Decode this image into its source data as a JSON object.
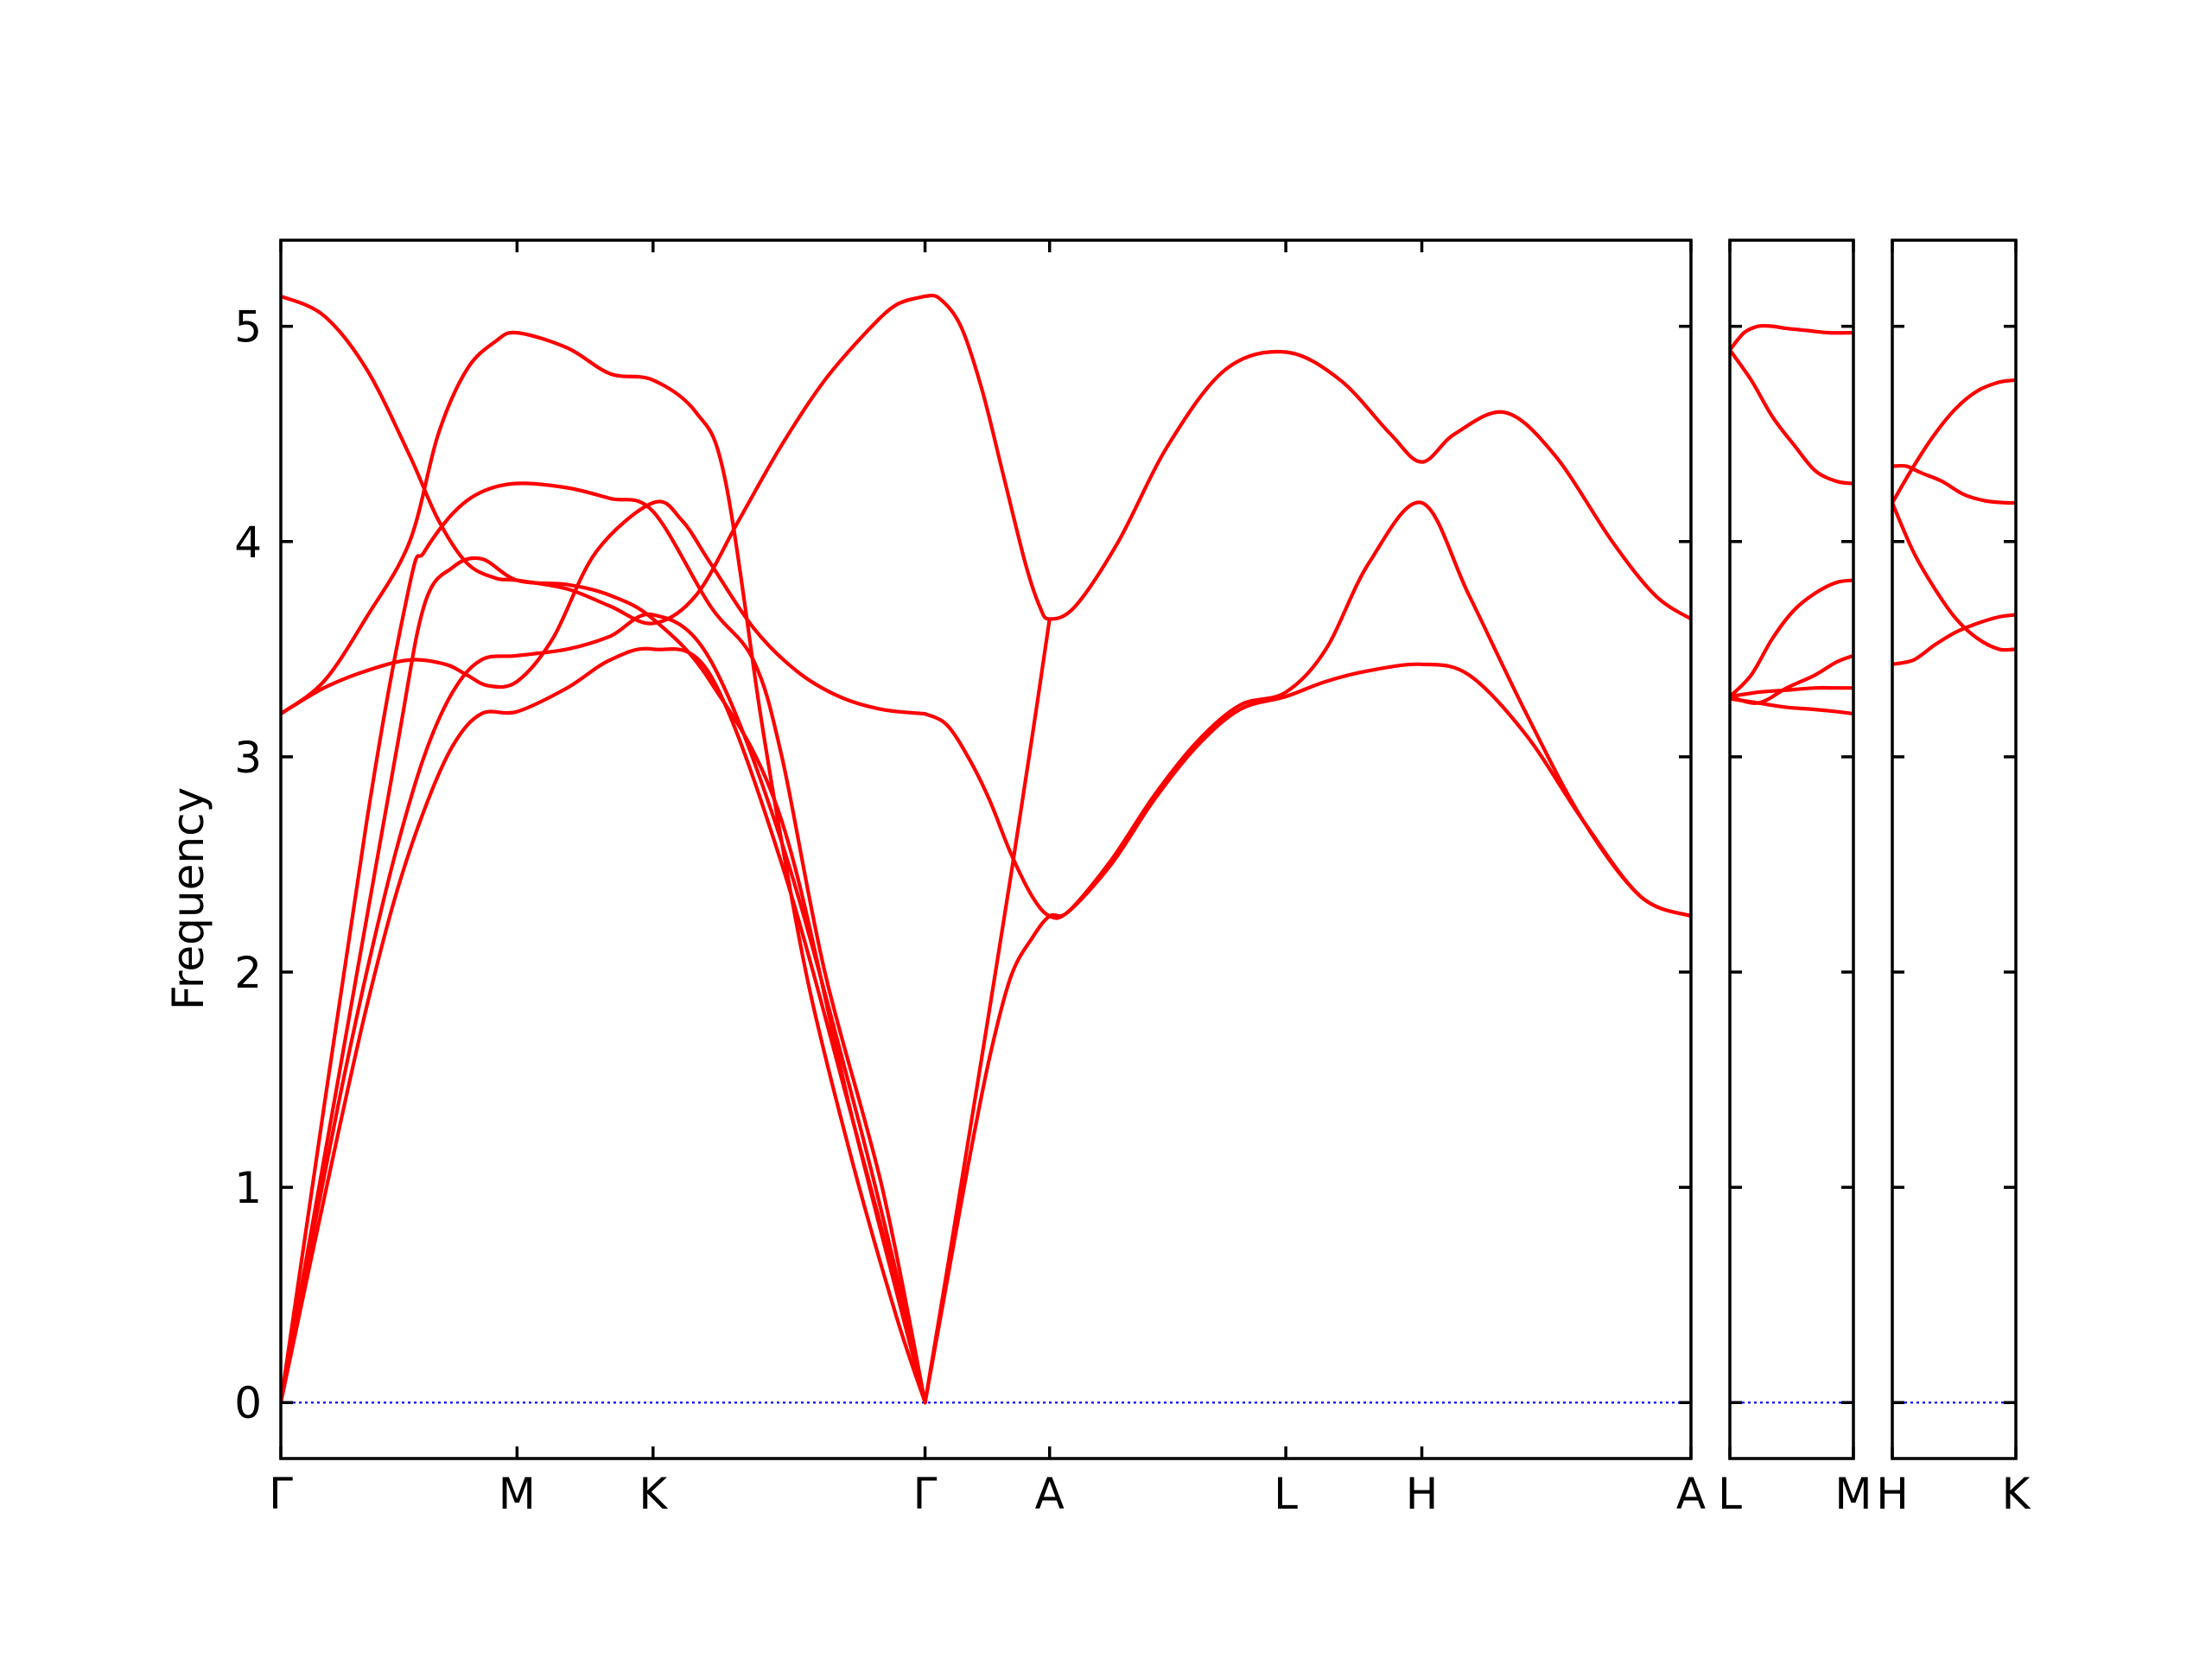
{
  "chart_data": {
    "type": "line",
    "title": "",
    "ylabel": "Frequency",
    "ylim": [
      -0.26,
      5.4
    ],
    "yticks": [
      0,
      1,
      2,
      3,
      4,
      5
    ],
    "grid": false,
    "colors": {
      "bands": "#ff0000",
      "zero_line": "#0000ff",
      "frame": "#000000"
    },
    "panels": [
      {
        "xlim": [
          0,
          9.85
        ],
        "ticks": [
          {
            "label": "Γ",
            "x": 0
          },
          {
            "label": "M",
            "x": 1.65
          },
          {
            "label": "K",
            "x": 2.6
          },
          {
            "label": "Γ",
            "x": 4.5
          },
          {
            "label": "A",
            "x": 5.37
          },
          {
            "label": "L",
            "x": 7.02
          },
          {
            "label": "H",
            "x": 7.97
          },
          {
            "label": "A",
            "x": 9.85
          }
        ],
        "series": [
          {
            "x": [
              0,
              0.2,
              0.4,
              0.6,
              0.8,
              1.0,
              1.2,
              1.4,
              1.65,
              2.0,
              2.3,
              2.6,
              3.0,
              3.5,
              4.0,
              4.3,
              4.5
            ],
            "y": [
              0,
              0.63,
              1.25,
              1.84,
              2.35,
              2.75,
              3.05,
              3.2,
              3.21,
              3.32,
              3.45,
              3.5,
              3.38,
              2.5,
              1.3,
              0.55,
              0
            ]
          },
          {
            "x": [
              0,
              0.2,
              0.4,
              0.6,
              0.8,
              1.0,
              1.2,
              1.4,
              1.65,
              2.0,
              2.3,
              2.6,
              3.0,
              3.5,
              4.0,
              4.3,
              4.5
            ],
            "y": [
              0,
              0.7,
              1.38,
              2.0,
              2.55,
              3.0,
              3.3,
              3.45,
              3.47,
              3.5,
              3.56,
              3.66,
              3.45,
              2.6,
              1.4,
              0.6,
              0
            ]
          },
          {
            "x": [
              0,
              0.4,
              0.8,
              1.0,
              1.2,
              1.4,
              1.65,
              2.0,
              2.3,
              2.6,
              3.0,
              3.5,
              4.0,
              4.5
            ],
            "y": [
              0,
              1.5,
              3.0,
              3.7,
              3.88,
              3.92,
              3.82,
              3.8,
              3.75,
              3.64,
              3.35,
              2.7,
              1.3,
              0
            ]
          },
          {
            "x": [
              0,
              0.6,
              0.9,
              1.0,
              1.2,
              1.4,
              1.65,
              2.0,
              2.3,
              2.6,
              3.0,
              3.3,
              3.5,
              3.8,
              4.2,
              4.5
            ],
            "y": [
              0,
              2.7,
              3.8,
              3.95,
              4.13,
              4.23,
              4.27,
              4.25,
              4.2,
              4.14,
              3.7,
              3.45,
              3.0,
              2.0,
              1.0,
              0
            ]
          },
          {
            "x": [
              0,
              0.3,
              0.6,
              0.9,
              1.15,
              1.3,
              1.45,
              1.65,
              1.9,
              2.2,
              2.6,
              2.8,
              3.0,
              3.3,
              3.6,
              3.9,
              4.2,
              4.5
            ],
            "y": [
              3.2,
              3.32,
              3.4,
              3.45,
              3.43,
              3.38,
              3.33,
              3.35,
              3.55,
              3.95,
              4.18,
              4.1,
              3.9,
              3.6,
              3.4,
              3.28,
              3.22,
              3.2
            ]
          },
          {
            "x": [
              0,
              0.3,
              0.6,
              0.9,
              1.1,
              1.3,
              1.5,
              1.65,
              2.0,
              2.3,
              2.6,
              2.9,
              3.1,
              3.35,
              3.5,
              3.7,
              4.0,
              4.3,
              4.5
            ],
            "y": [
              3.2,
              3.35,
              3.65,
              4.0,
              4.5,
              4.8,
              4.93,
              4.97,
              4.9,
              4.78,
              4.75,
              4.6,
              4.3,
              3.2,
              2.6,
              1.9,
              1.1,
              0.4,
              0
            ]
          },
          {
            "x": [
              0,
              0.3,
              0.6,
              0.9,
              1.1,
              1.3,
              1.5,
              1.65,
              2.0,
              2.3,
              2.6,
              2.9,
              3.2,
              3.5,
              3.8,
              4.1,
              4.3,
              4.5
            ],
            "y": [
              5.14,
              5.05,
              4.8,
              4.4,
              4.1,
              3.9,
              3.83,
              3.82,
              3.78,
              3.7,
              3.62,
              3.75,
              4.1,
              4.45,
              4.75,
              4.98,
              5.1,
              5.14
            ]
          },
          {
            "x": [
              4.5,
              4.65,
              4.8,
              4.95,
              5.1,
              5.25,
              5.37,
              5.5,
              5.8,
              6.1,
              6.4,
              6.7,
              7.02,
              7.3,
              7.6,
              7.97,
              8.3,
              8.7,
              9.1,
              9.5,
              9.85
            ],
            "y": [
              3.2,
              3.15,
              3.0,
              2.8,
              2.55,
              2.35,
              2.26,
              2.28,
              2.5,
              2.8,
              3.05,
              3.22,
              3.28,
              3.35,
              3.4,
              3.43,
              3.38,
              3.1,
              2.7,
              2.35,
              2.26
            ]
          },
          {
            "x": [
              4.5,
              4.65,
              4.8,
              4.95,
              5.1,
              5.25,
              5.37,
              5.5,
              5.8,
              6.1,
              6.4,
              6.7,
              7.02,
              7.3,
              7.6,
              7.97,
              8.3,
              8.7,
              9.1,
              9.5,
              9.85
            ],
            "y": [
              0,
              0.55,
              1.1,
              1.6,
              1.98,
              2.16,
              2.26,
              2.28,
              2.52,
              2.82,
              3.07,
              3.24,
              3.3,
              3.5,
              3.9,
              4.18,
              3.75,
              3.2,
              2.7,
              2.35,
              2.26
            ]
          },
          {
            "x": [
              4.5,
              4.6,
              4.75,
              4.9,
              5.05,
              5.2,
              5.3,
              5.37,
              5.55,
              5.85,
              6.2,
              6.6,
              7.02,
              7.4,
              7.75,
              7.97,
              8.2,
              8.55,
              8.9,
              9.3,
              9.6,
              9.85
            ],
            "y": [
              5.14,
              5.13,
              5.0,
              4.7,
              4.3,
              3.9,
              3.7,
              3.64,
              3.7,
              4.0,
              4.45,
              4.8,
              4.88,
              4.75,
              4.5,
              4.37,
              4.5,
              4.6,
              4.4,
              4.0,
              3.75,
              3.64
            ]
          },
          {
            "x": [
              4.5,
              4.7,
              4.9,
              5.1,
              5.25,
              5.37
            ],
            "y": [
              0,
              0.8,
              1.62,
              2.45,
              3.1,
              3.64
            ]
          }
        ]
      },
      {
        "xlim": [
          0,
          0.87
        ],
        "ticks": [
          {
            "label": "L",
            "x": 0
          },
          {
            "label": "M",
            "x": 0.87
          }
        ],
        "series": [
          {
            "x": [
              0,
              0.1,
              0.2,
              0.3,
              0.4,
              0.55,
              0.7,
              0.87
            ],
            "y": [
              4.89,
              4.97,
              5.0,
              5.0,
              4.99,
              4.98,
              4.97,
              4.97
            ]
          },
          {
            "x": [
              0,
              0.15,
              0.3,
              0.45,
              0.6,
              0.75,
              0.87
            ],
            "y": [
              4.89,
              4.75,
              4.58,
              4.45,
              4.33,
              4.28,
              4.27
            ]
          },
          {
            "x": [
              0,
              0.15,
              0.3,
              0.45,
              0.6,
              0.75,
              0.87
            ],
            "y": [
              3.28,
              3.38,
              3.55,
              3.68,
              3.76,
              3.81,
              3.82
            ]
          },
          {
            "x": [
              0,
              0.2,
              0.4,
              0.6,
              0.75,
              0.87
            ],
            "y": [
              3.28,
              3.25,
              3.32,
              3.38,
              3.44,
              3.47
            ]
          },
          {
            "x": [
              0,
              0.2,
              0.4,
              0.6,
              0.75,
              0.87
            ],
            "y": [
              3.28,
              3.3,
              3.31,
              3.32,
              3.32,
              3.32
            ]
          },
          {
            "x": [
              0,
              0.2,
              0.4,
              0.6,
              0.75,
              0.87
            ],
            "y": [
              3.27,
              3.25,
              3.23,
              3.22,
              3.21,
              3.2
            ]
          }
        ]
      },
      {
        "xlim": [
          0,
          0.87
        ],
        "ticks": [
          {
            "label": "H",
            "x": 0
          },
          {
            "label": "K",
            "x": 0.87
          }
        ],
        "series": [
          {
            "x": [
              0,
              0.15,
              0.3,
              0.45,
              0.6,
              0.75,
              0.87
            ],
            "y": [
              4.18,
              4.35,
              4.5,
              4.62,
              4.7,
              4.74,
              4.75
            ]
          },
          {
            "x": [
              0,
              0.1,
              0.2,
              0.35,
              0.5,
              0.65,
              0.8,
              0.87
            ],
            "y": [
              4.35,
              4.35,
              4.32,
              4.28,
              4.22,
              4.19,
              4.18,
              4.18
            ]
          },
          {
            "x": [
              0,
              0.15,
              0.3,
              0.45,
              0.6,
              0.75,
              0.87
            ],
            "y": [
              4.18,
              3.95,
              3.78,
              3.64,
              3.55,
              3.5,
              3.5
            ]
          },
          {
            "x": [
              0,
              0.15,
              0.3,
              0.45,
              0.6,
              0.75,
              0.87
            ],
            "y": [
              3.43,
              3.45,
              3.52,
              3.58,
              3.62,
              3.65,
              3.66
            ]
          }
        ]
      }
    ]
  }
}
